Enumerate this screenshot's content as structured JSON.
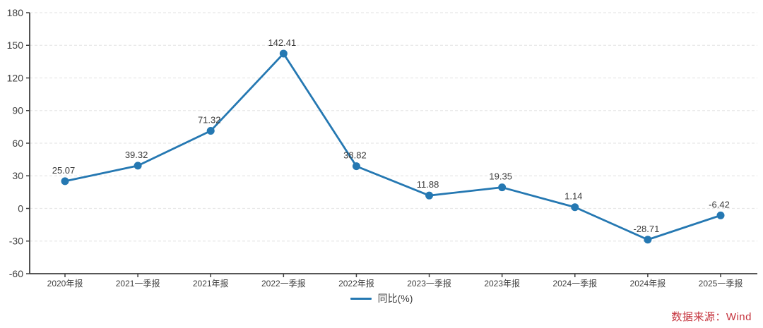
{
  "chart": {
    "legend_label": "同比(%)",
    "source_label": "数据来源：Wind"
  },
  "chart_data": {
    "type": "line",
    "title": "",
    "xlabel": "",
    "ylabel": "",
    "categories": [
      "2020年报",
      "2021一季报",
      "2021年报",
      "2022一季报",
      "2022年报",
      "2023一季报",
      "2023年报",
      "2024一季报",
      "2024年报",
      "2025一季报"
    ],
    "series": [
      {
        "name": "同比(%)",
        "values": [
          25.07,
          39.32,
          71.32,
          142.41,
          38.82,
          11.88,
          19.35,
          1.14,
          -28.71,
          -6.42
        ]
      }
    ],
    "point_labels": [
      "25.07",
      "39.32",
      "71.32",
      "142.41",
      "38.82",
      "11.88",
      "19.35",
      "1.14",
      "-28.71",
      "-6.42"
    ],
    "yticks": [
      180,
      150,
      120,
      90,
      60,
      30,
      0,
      -30,
      -60
    ],
    "ylim": [
      -60,
      180
    ],
    "grid": "horizontal-dashed",
    "legend_position": "bottom-center",
    "colors": {
      "line": "#2578b2",
      "marker": "#2578b2",
      "grid": "#e7e7e7",
      "axis": "#3f3f3f",
      "tick_text": "#404040",
      "point_label_text": "#3c3c3c",
      "legend_text": "#404040",
      "source_text": "#c5343e"
    }
  }
}
